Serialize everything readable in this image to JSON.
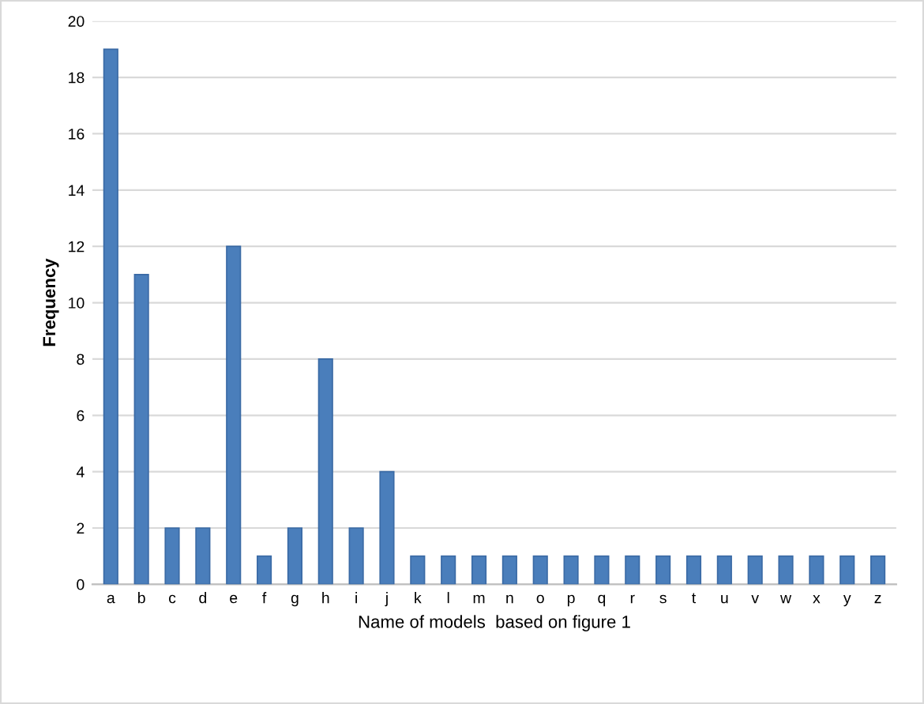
{
  "chart_data": {
    "type": "bar",
    "xlabel": "Name of models  based on figure 1",
    "ylabel": "Frequency",
    "categories": [
      "a",
      "b",
      "c",
      "d",
      "e",
      "f",
      "g",
      "h",
      "i",
      "j",
      "k",
      "l",
      "m",
      "n",
      "o",
      "p",
      "q",
      "r",
      "s",
      "t",
      "u",
      "v",
      "w",
      "x",
      "y",
      "z"
    ],
    "values": [
      19,
      11,
      2,
      2,
      12,
      1,
      2,
      8,
      2,
      4,
      1,
      1,
      1,
      1,
      1,
      1,
      1,
      1,
      1,
      1,
      1,
      1,
      1,
      1,
      1,
      1
    ],
    "color": "#4a7ebb",
    "ylim": [
      0,
      20
    ],
    "yticks": [
      0,
      2,
      4,
      6,
      8,
      10,
      12,
      14,
      16,
      18,
      20
    ],
    "grid": "y"
  }
}
